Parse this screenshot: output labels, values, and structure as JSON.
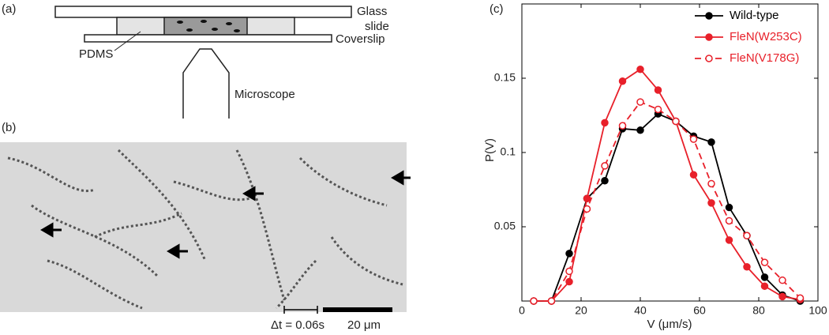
{
  "panel_a": {
    "label": "(a)",
    "glass_slide": [
      "Glass",
      "slide"
    ],
    "pdms": "PDMS",
    "coverslip": "Coverslip",
    "microscope": "Microscope"
  },
  "panel_b": {
    "label": "(b)",
    "time_scale": "Δt = 0.06s",
    "length_scale": "20 μm"
  },
  "chart_data": {
    "type": "line",
    "panel_label": "(c)",
    "x_label": "V (μm/s)",
    "y_label": "P(V)",
    "x": [
      4,
      10,
      16,
      22,
      28,
      34,
      40,
      46,
      52,
      58,
      64,
      70,
      76,
      82,
      88,
      94
    ],
    "series": [
      {
        "name": "Wild-type",
        "color": "#000000",
        "marker": "filled",
        "dashed": false,
        "values": [
          0,
          0,
          0.032,
          0.069,
          0.081,
          0.116,
          0.115,
          0.126,
          0.121,
          0.111,
          0.107,
          0.063,
          0.044,
          0.016,
          0.004,
          0
        ]
      },
      {
        "name": "FleN(W253C)",
        "color": "#e8202a",
        "marker": "filled",
        "dashed": false,
        "values": [
          0,
          0,
          0.013,
          0.069,
          0.12,
          0.148,
          0.156,
          0.142,
          0.121,
          0.085,
          0.066,
          0.041,
          0.023,
          0.01,
          0.003,
          0.001
        ]
      },
      {
        "name": "FleN(V178G)",
        "color": "#e8202a",
        "marker": "open",
        "dashed": true,
        "values": [
          0,
          0,
          0.02,
          0.062,
          0.091,
          0.118,
          0.134,
          0.129,
          0.121,
          0.109,
          0.079,
          0.054,
          0.044,
          0.026,
          0.014,
          0.002
        ]
      }
    ],
    "xlim": [
      0,
      100
    ],
    "ylim": [
      0,
      0.2
    ],
    "xticks": [
      0,
      20,
      40,
      60,
      80,
      100
    ],
    "yticks": [
      0.05,
      0.1,
      0.15
    ],
    "legend": "upper right",
    "grid": false
  }
}
